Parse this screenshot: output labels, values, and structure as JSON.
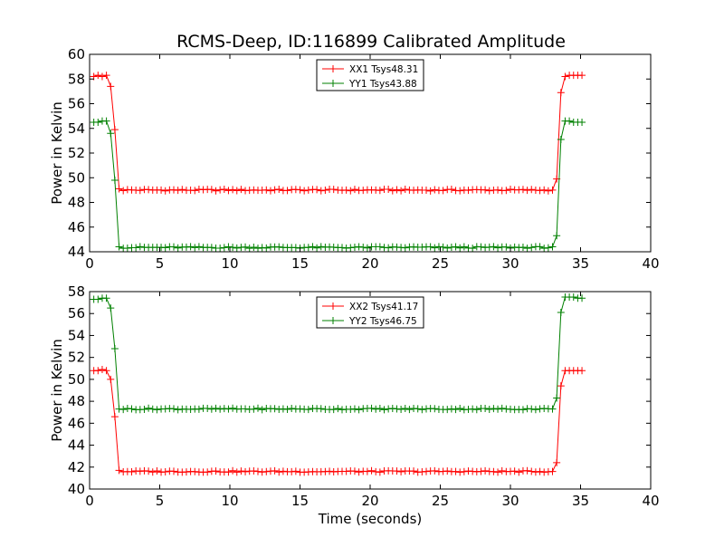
{
  "title": "RCMS-Deep, ID:116899 Calibrated Amplitude",
  "chart_data": [
    {
      "type": "line",
      "xlabel": "",
      "ylabel": "Power in Kelvin",
      "xlim": [
        0,
        40
      ],
      "ylim": [
        44,
        60
      ],
      "xticks": [
        0,
        5,
        10,
        15,
        20,
        25,
        30,
        35,
        40
      ],
      "yticks": [
        44,
        46,
        48,
        50,
        52,
        54,
        56,
        58,
        60
      ],
      "legend": "top-center",
      "series": [
        {
          "name": "XX1 Tsys48.31",
          "color": "#ff0000",
          "ramp_down": [
            [
              0.3,
              58.2
            ],
            [
              0.6,
              58.3
            ],
            [
              0.9,
              58.2
            ],
            [
              1.2,
              58.3
            ],
            [
              1.5,
              57.4
            ],
            [
              1.8,
              53.9
            ],
            [
              2.1,
              49.1
            ]
          ],
          "plateau": {
            "from": 2.4,
            "to": 32.7,
            "step": 0.3,
            "value": 49.0
          },
          "ramp_up": [
            [
              33.0,
              49.0
            ],
            [
              33.3,
              49.9
            ],
            [
              33.6,
              56.9
            ],
            [
              33.9,
              58.2
            ],
            [
              34.2,
              58.3
            ],
            [
              34.5,
              58.3
            ],
            [
              34.8,
              58.3
            ],
            [
              35.1,
              58.3
            ]
          ]
        },
        {
          "name": "YY1 Tsys43.88",
          "color": "#008000",
          "ramp_down": [
            [
              0.3,
              54.5
            ],
            [
              0.6,
              54.5
            ],
            [
              0.9,
              54.6
            ],
            [
              1.2,
              54.6
            ],
            [
              1.5,
              53.6
            ],
            [
              1.8,
              49.8
            ],
            [
              2.1,
              44.4
            ]
          ],
          "plateau": {
            "from": 2.4,
            "to": 32.7,
            "step": 0.3,
            "value": 44.35
          },
          "ramp_up": [
            [
              33.0,
              44.4
            ],
            [
              33.3,
              45.3
            ],
            [
              33.6,
              53.1
            ],
            [
              33.9,
              54.6
            ],
            [
              34.2,
              54.6
            ],
            [
              34.5,
              54.5
            ],
            [
              34.8,
              54.5
            ],
            [
              35.1,
              54.5
            ]
          ]
        }
      ]
    },
    {
      "type": "line",
      "xlabel": "Time (seconds)",
      "ylabel": "Power in Kelvin",
      "xlim": [
        0,
        40
      ],
      "ylim": [
        40,
        58
      ],
      "xticks": [
        0,
        5,
        10,
        15,
        20,
        25,
        30,
        35,
        40
      ],
      "yticks": [
        40,
        42,
        44,
        46,
        48,
        50,
        52,
        54,
        56,
        58
      ],
      "legend": "top-center",
      "series": [
        {
          "name": "XX2 Tsys41.17",
          "color": "#ff0000",
          "ramp_down": [
            [
              0.3,
              50.8
            ],
            [
              0.6,
              50.8
            ],
            [
              0.9,
              50.9
            ],
            [
              1.2,
              50.8
            ],
            [
              1.5,
              50.0
            ],
            [
              1.8,
              46.6
            ],
            [
              2.1,
              41.7
            ]
          ],
          "plateau": {
            "from": 2.4,
            "to": 32.7,
            "step": 0.3,
            "value": 41.6
          },
          "ramp_up": [
            [
              33.0,
              41.6
            ],
            [
              33.3,
              42.4
            ],
            [
              33.6,
              49.4
            ],
            [
              33.9,
              50.8
            ],
            [
              34.2,
              50.8
            ],
            [
              34.5,
              50.8
            ],
            [
              34.8,
              50.8
            ],
            [
              35.1,
              50.8
            ]
          ]
        },
        {
          "name": "YY2 Tsys46.75",
          "color": "#008000",
          "ramp_down": [
            [
              0.3,
              57.3
            ],
            [
              0.6,
              57.3
            ],
            [
              0.9,
              57.4
            ],
            [
              1.2,
              57.4
            ],
            [
              1.5,
              56.5
            ],
            [
              1.8,
              52.8
            ],
            [
              2.1,
              47.3
            ]
          ],
          "plateau": {
            "from": 2.4,
            "to": 32.7,
            "step": 0.3,
            "value": 47.3
          },
          "ramp_up": [
            [
              33.0,
              47.3
            ],
            [
              33.3,
              48.3
            ],
            [
              33.6,
              56.1
            ],
            [
              33.9,
              57.5
            ],
            [
              34.2,
              57.5
            ],
            [
              34.5,
              57.5
            ],
            [
              34.8,
              57.4
            ],
            [
              35.1,
              57.4
            ]
          ]
        }
      ]
    }
  ]
}
